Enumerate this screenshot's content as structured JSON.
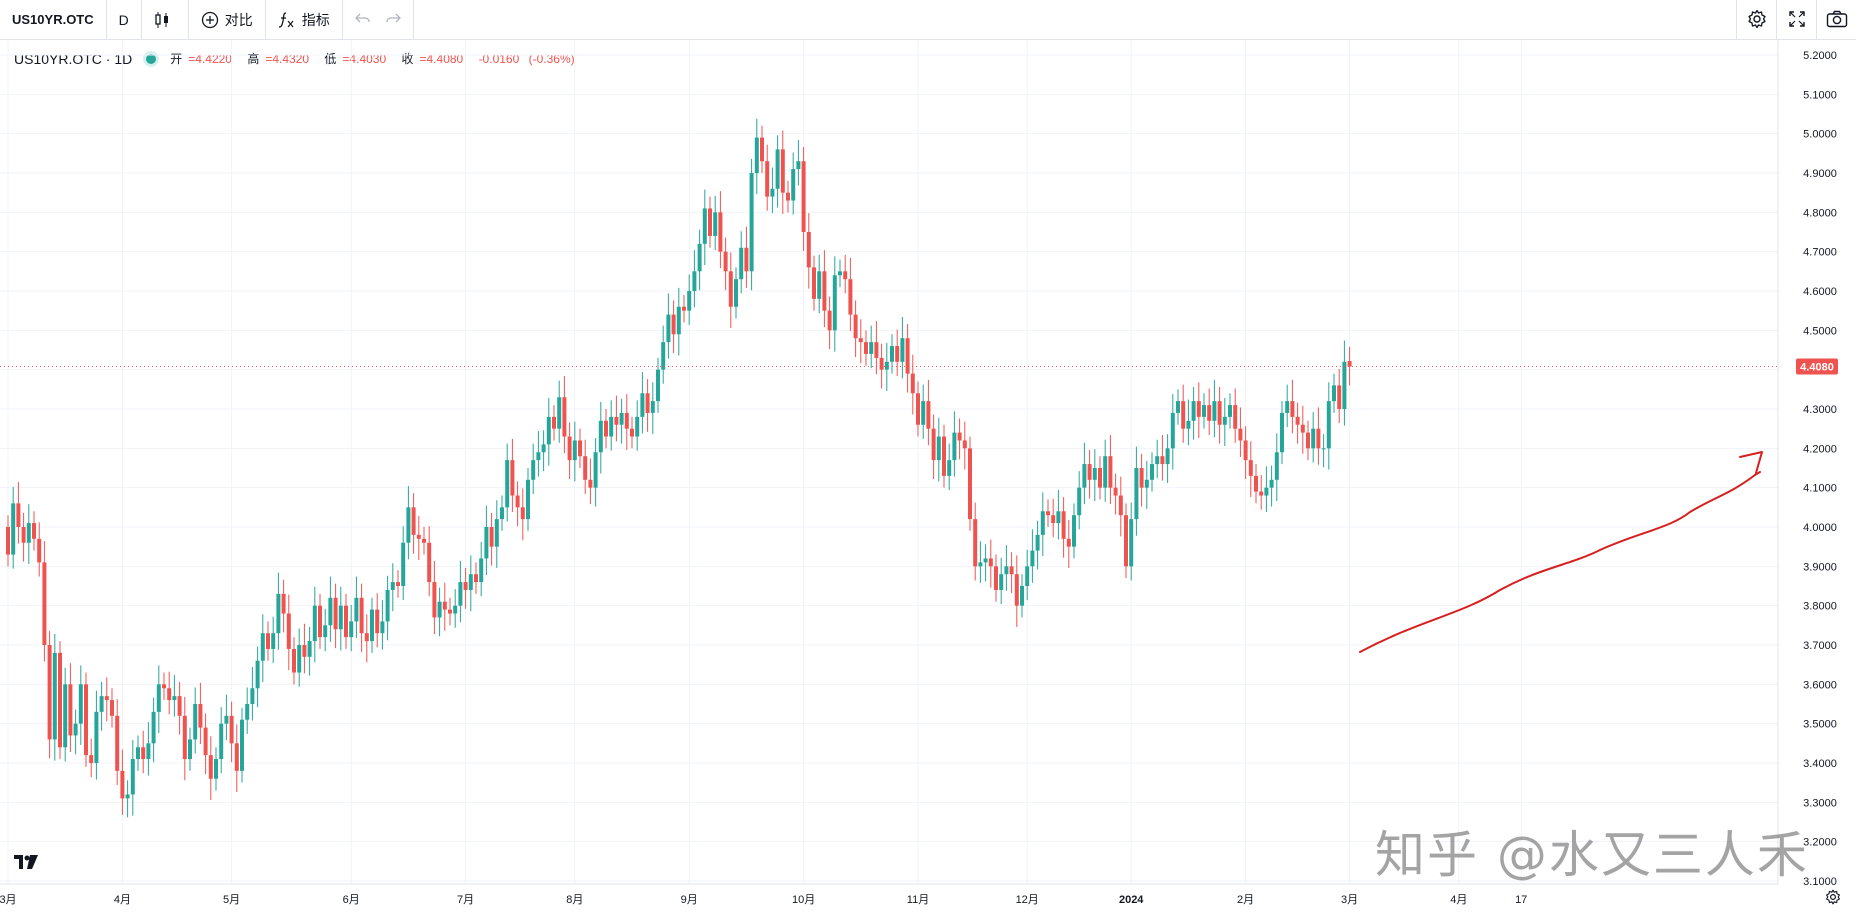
{
  "toolbar": {
    "symbol": "US10YR.OTC",
    "interval": "D",
    "compare_label": "对比",
    "indicators_label": "指标",
    "icons": [
      "candles-icon",
      "plus-circle-icon",
      "fx-icon",
      "undo-icon",
      "redo-icon",
      "gear-icon",
      "fullscreen-icon",
      "camera-icon"
    ]
  },
  "legend": {
    "symbol": "US10YR.OTC · 1D",
    "open_label": "开",
    "open": "=4.4220",
    "high_label": "高",
    "high": "=4.4320",
    "low_label": "低",
    "low": "=4.4030",
    "close_label": "收",
    "close": "=4.4080",
    "change": "-0.0160",
    "change_pct": "(-0.36%)"
  },
  "price_tag": "4.4080",
  "watermark": "知乎 @水又三人禾",
  "colors": {
    "up": "#26a69a",
    "down": "#ef5350",
    "annotation": "#d81e1e",
    "grid": "#f0f3fa"
  },
  "chart_data": {
    "type": "candlestick",
    "yaxis": {
      "min": 3.1,
      "max": 5.2,
      "ticks": [
        "5.2000",
        "5.1000",
        "5.0000",
        "4.9000",
        "4.8000",
        "4.7000",
        "4.6000",
        "4.5000",
        "4.4000",
        "4.3000",
        "4.2000",
        "4.1000",
        "4.0000",
        "3.9000",
        "3.8000",
        "3.7000",
        "3.6000",
        "3.5000",
        "3.4000",
        "3.3000",
        "3.2000",
        "3.1000"
      ]
    },
    "xaxis": {
      "labels": [
        "3月",
        "4月",
        "5月",
        "6月",
        "7月",
        "8月",
        "9月",
        "10月",
        "11月",
        "12月",
        "2024",
        "2月",
        "3月",
        "4月",
        "17"
      ],
      "label_positions": [
        0,
        22,
        43,
        66,
        88,
        109,
        131,
        153,
        175,
        196,
        216,
        238,
        258,
        279,
        291
      ]
    },
    "last_close": 4.408,
    "series": [
      {
        "o": 4.0,
        "c": 3.93
      },
      {
        "o": 3.93,
        "c": 4.06
      },
      {
        "o": 4.06,
        "c": 4.0
      },
      {
        "o": 4.0,
        "c": 3.96
      },
      {
        "o": 3.96,
        "c": 4.01
      },
      {
        "o": 4.01,
        "c": 3.97
      },
      {
        "o": 3.97,
        "c": 3.91
      },
      {
        "o": 3.91,
        "c": 3.7
      },
      {
        "o": 3.7,
        "c": 3.46
      },
      {
        "o": 3.46,
        "c": 3.68
      },
      {
        "o": 3.68,
        "c": 3.44
      },
      {
        "o": 3.44,
        "c": 3.6
      },
      {
        "o": 3.6,
        "c": 3.47
      },
      {
        "o": 3.47,
        "c": 3.5
      },
      {
        "o": 3.5,
        "c": 3.6
      },
      {
        "o": 3.6,
        "c": 3.42
      },
      {
        "o": 3.42,
        "c": 3.4
      },
      {
        "o": 3.4,
        "c": 3.53
      },
      {
        "o": 3.53,
        "c": 3.57
      },
      {
        "o": 3.57,
        "c": 3.56
      },
      {
        "o": 3.56,
        "c": 3.52
      },
      {
        "o": 3.52,
        "c": 3.38
      },
      {
        "o": 3.38,
        "c": 3.31
      },
      {
        "o": 3.31,
        "c": 3.32
      },
      {
        "o": 3.32,
        "c": 3.41
      },
      {
        "o": 3.41,
        "c": 3.44
      },
      {
        "o": 3.44,
        "c": 3.41
      },
      {
        "o": 3.41,
        "c": 3.45
      },
      {
        "o": 3.45,
        "c": 3.53
      },
      {
        "o": 3.53,
        "c": 3.6
      },
      {
        "o": 3.6,
        "c": 3.59
      },
      {
        "o": 3.59,
        "c": 3.56
      },
      {
        "o": 3.56,
        "c": 3.57
      },
      {
        "o": 3.57,
        "c": 3.52
      },
      {
        "o": 3.52,
        "c": 3.41
      },
      {
        "o": 3.41,
        "c": 3.46
      },
      {
        "o": 3.46,
        "c": 3.55
      },
      {
        "o": 3.55,
        "c": 3.49
      },
      {
        "o": 3.49,
        "c": 3.42
      },
      {
        "o": 3.42,
        "c": 3.36
      },
      {
        "o": 3.36,
        "c": 3.41
      },
      {
        "o": 3.41,
        "c": 3.5
      },
      {
        "o": 3.5,
        "c": 3.52
      },
      {
        "o": 3.52,
        "c": 3.45
      },
      {
        "o": 3.45,
        "c": 3.38
      },
      {
        "o": 3.38,
        "c": 3.51
      },
      {
        "o": 3.51,
        "c": 3.55
      },
      {
        "o": 3.55,
        "c": 3.59
      },
      {
        "o": 3.59,
        "c": 3.66
      },
      {
        "o": 3.66,
        "c": 3.73
      },
      {
        "o": 3.73,
        "c": 3.69
      },
      {
        "o": 3.69,
        "c": 3.73
      },
      {
        "o": 3.73,
        "c": 3.83
      },
      {
        "o": 3.83,
        "c": 3.78
      },
      {
        "o": 3.78,
        "c": 3.69
      },
      {
        "o": 3.69,
        "c": 3.63
      },
      {
        "o": 3.63,
        "c": 3.7
      },
      {
        "o": 3.7,
        "c": 3.67
      },
      {
        "o": 3.67,
        "c": 3.71
      },
      {
        "o": 3.71,
        "c": 3.8
      },
      {
        "o": 3.8,
        "c": 3.72
      },
      {
        "o": 3.72,
        "c": 3.75
      },
      {
        "o": 3.75,
        "c": 3.82
      },
      {
        "o": 3.82,
        "c": 3.74
      },
      {
        "o": 3.74,
        "c": 3.8
      },
      {
        "o": 3.8,
        "c": 3.72
      },
      {
        "o": 3.72,
        "c": 3.76
      },
      {
        "o": 3.76,
        "c": 3.82
      },
      {
        "o": 3.82,
        "c": 3.73
      },
      {
        "o": 3.73,
        "c": 3.71
      },
      {
        "o": 3.71,
        "c": 3.79
      },
      {
        "o": 3.79,
        "c": 3.73
      },
      {
        "o": 3.73,
        "c": 3.76
      },
      {
        "o": 3.76,
        "c": 3.84
      },
      {
        "o": 3.84,
        "c": 3.86
      },
      {
        "o": 3.86,
        "c": 3.85
      },
      {
        "o": 3.85,
        "c": 3.96
      },
      {
        "o": 3.96,
        "c": 4.05
      },
      {
        "o": 4.05,
        "c": 3.98
      },
      {
        "o": 3.98,
        "c": 3.97
      },
      {
        "o": 3.97,
        "c": 3.96
      },
      {
        "o": 3.96,
        "c": 3.86
      },
      {
        "o": 3.86,
        "c": 3.77
      },
      {
        "o": 3.77,
        "c": 3.81
      },
      {
        "o": 3.81,
        "c": 3.79
      },
      {
        "o": 3.79,
        "c": 3.78
      },
      {
        "o": 3.78,
        "c": 3.8
      },
      {
        "o": 3.8,
        "c": 3.86
      },
      {
        "o": 3.86,
        "c": 3.84
      },
      {
        "o": 3.84,
        "c": 3.88
      },
      {
        "o": 3.88,
        "c": 3.86
      },
      {
        "o": 3.86,
        "c": 3.92
      },
      {
        "o": 3.92,
        "c": 4.0
      },
      {
        "o": 4.0,
        "c": 3.95
      },
      {
        "o": 3.95,
        "c": 4.02
      },
      {
        "o": 4.02,
        "c": 4.05
      },
      {
        "o": 4.05,
        "c": 4.17
      },
      {
        "o": 4.17,
        "c": 4.08
      },
      {
        "o": 4.08,
        "c": 4.05
      },
      {
        "o": 4.05,
        "c": 4.02
      },
      {
        "o": 4.02,
        "c": 4.12
      },
      {
        "o": 4.12,
        "c": 4.17
      },
      {
        "o": 4.17,
        "c": 4.19
      },
      {
        "o": 4.19,
        "c": 4.21
      },
      {
        "o": 4.21,
        "c": 4.28
      },
      {
        "o": 4.28,
        "c": 4.25
      },
      {
        "o": 4.25,
        "c": 4.33
      },
      {
        "o": 4.33,
        "c": 4.23
      },
      {
        "o": 4.23,
        "c": 4.17
      },
      {
        "o": 4.17,
        "c": 4.22
      },
      {
        "o": 4.22,
        "c": 4.18
      },
      {
        "o": 4.18,
        "c": 4.12
      },
      {
        "o": 4.12,
        "c": 4.1
      },
      {
        "o": 4.1,
        "c": 4.19
      },
      {
        "o": 4.19,
        "c": 4.27
      },
      {
        "o": 4.27,
        "c": 4.23
      },
      {
        "o": 4.23,
        "c": 4.28
      },
      {
        "o": 4.28,
        "c": 4.26
      },
      {
        "o": 4.26,
        "c": 4.29
      },
      {
        "o": 4.29,
        "c": 4.25
      },
      {
        "o": 4.25,
        "c": 4.23
      },
      {
        "o": 4.23,
        "c": 4.28
      },
      {
        "o": 4.28,
        "c": 4.34
      },
      {
        "o": 4.34,
        "c": 4.29
      },
      {
        "o": 4.29,
        "c": 4.32
      },
      {
        "o": 4.32,
        "c": 4.4
      },
      {
        "o": 4.4,
        "c": 4.47
      },
      {
        "o": 4.47,
        "c": 4.54
      },
      {
        "o": 4.54,
        "c": 4.49
      },
      {
        "o": 4.49,
        "c": 4.56
      },
      {
        "o": 4.56,
        "c": 4.55
      },
      {
        "o": 4.55,
        "c": 4.6
      },
      {
        "o": 4.6,
        "c": 4.65
      },
      {
        "o": 4.65,
        "c": 4.72
      },
      {
        "o": 4.72,
        "c": 4.81
      },
      {
        "o": 4.81,
        "c": 4.74
      },
      {
        "o": 4.74,
        "c": 4.8
      },
      {
        "o": 4.8,
        "c": 4.7
      },
      {
        "o": 4.7,
        "c": 4.65
      },
      {
        "o": 4.65,
        "c": 4.56
      },
      {
        "o": 4.56,
        "c": 4.63
      },
      {
        "o": 4.63,
        "c": 4.71
      },
      {
        "o": 4.71,
        "c": 4.65
      },
      {
        "o": 4.65,
        "c": 4.9
      },
      {
        "o": 4.9,
        "c": 4.99
      },
      {
        "o": 4.99,
        "c": 4.93
      },
      {
        "o": 4.93,
        "c": 4.84
      },
      {
        "o": 4.84,
        "c": 4.86
      },
      {
        "o": 4.86,
        "c": 4.96
      },
      {
        "o": 4.96,
        "c": 4.85
      },
      {
        "o": 4.85,
        "c": 4.83
      },
      {
        "o": 4.83,
        "c": 4.91
      },
      {
        "o": 4.91,
        "c": 4.93
      },
      {
        "o": 4.93,
        "c": 4.75
      },
      {
        "o": 4.75,
        "c": 4.66
      },
      {
        "o": 4.66,
        "c": 4.58
      },
      {
        "o": 4.58,
        "c": 4.65
      },
      {
        "o": 4.65,
        "c": 4.55
      },
      {
        "o": 4.55,
        "c": 4.5
      },
      {
        "o": 4.5,
        "c": 4.64
      },
      {
        "o": 4.64,
        "c": 4.65
      },
      {
        "o": 4.65,
        "c": 4.63
      },
      {
        "o": 4.63,
        "c": 4.54
      },
      {
        "o": 4.54,
        "c": 4.48
      },
      {
        "o": 4.48,
        "c": 4.47
      },
      {
        "o": 4.47,
        "c": 4.44
      },
      {
        "o": 4.44,
        "c": 4.47
      },
      {
        "o": 4.47,
        "c": 4.43
      },
      {
        "o": 4.43,
        "c": 4.4
      },
      {
        "o": 4.4,
        "c": 4.42
      },
      {
        "o": 4.42,
        "c": 4.46
      },
      {
        "o": 4.46,
        "c": 4.42
      },
      {
        "o": 4.42,
        "c": 4.48
      },
      {
        "o": 4.48,
        "c": 4.39
      },
      {
        "o": 4.39,
        "c": 4.34
      },
      {
        "o": 4.34,
        "c": 4.26
      },
      {
        "o": 4.26,
        "c": 4.32
      },
      {
        "o": 4.32,
        "c": 4.25
      },
      {
        "o": 4.25,
        "c": 4.17
      },
      {
        "o": 4.17,
        "c": 4.23
      },
      {
        "o": 4.23,
        "c": 4.13
      },
      {
        "o": 4.13,
        "c": 4.17
      },
      {
        "o": 4.17,
        "c": 4.24
      },
      {
        "o": 4.24,
        "c": 4.22
      },
      {
        "o": 4.22,
        "c": 4.2
      },
      {
        "o": 4.2,
        "c": 4.02
      },
      {
        "o": 4.02,
        "c": 3.9
      },
      {
        "o": 3.9,
        "c": 3.91
      },
      {
        "o": 3.91,
        "c": 3.92
      },
      {
        "o": 3.92,
        "c": 3.9
      },
      {
        "o": 3.9,
        "c": 3.84
      },
      {
        "o": 3.84,
        "c": 3.88
      },
      {
        "o": 3.88,
        "c": 3.9
      },
      {
        "o": 3.9,
        "c": 3.88
      },
      {
        "o": 3.88,
        "c": 3.8
      },
      {
        "o": 3.8,
        "c": 3.85
      },
      {
        "o": 3.85,
        "c": 3.9
      },
      {
        "o": 3.9,
        "c": 3.94
      },
      {
        "o": 3.94,
        "c": 3.98
      },
      {
        "o": 3.98,
        "c": 4.04
      },
      {
        "o": 4.04,
        "c": 4.03
      },
      {
        "o": 4.03,
        "c": 4.01
      },
      {
        "o": 4.01,
        "c": 4.04
      },
      {
        "o": 4.04,
        "c": 3.97
      },
      {
        "o": 3.97,
        "c": 3.95
      },
      {
        "o": 3.95,
        "c": 4.03
      },
      {
        "o": 4.03,
        "c": 4.1
      },
      {
        "o": 4.1,
        "c": 4.16
      },
      {
        "o": 4.16,
        "c": 4.12
      },
      {
        "o": 4.12,
        "c": 4.15
      },
      {
        "o": 4.15,
        "c": 4.1
      },
      {
        "o": 4.1,
        "c": 4.18
      },
      {
        "o": 4.18,
        "c": 4.1
      },
      {
        "o": 4.1,
        "c": 4.08
      },
      {
        "o": 4.08,
        "c": 4.03
      },
      {
        "o": 4.03,
        "c": 3.9
      },
      {
        "o": 3.9,
        "c": 4.02
      },
      {
        "o": 4.02,
        "c": 4.15
      },
      {
        "o": 4.15,
        "c": 4.1
      },
      {
        "o": 4.1,
        "c": 4.12
      },
      {
        "o": 4.12,
        "c": 4.16
      },
      {
        "o": 4.16,
        "c": 4.18
      },
      {
        "o": 4.18,
        "c": 4.16
      },
      {
        "o": 4.16,
        "c": 4.2
      },
      {
        "o": 4.2,
        "c": 4.29
      },
      {
        "o": 4.29,
        "c": 4.32
      },
      {
        "o": 4.32,
        "c": 4.25
      },
      {
        "o": 4.25,
        "c": 4.27
      },
      {
        "o": 4.27,
        "c": 4.32
      },
      {
        "o": 4.32,
        "c": 4.28
      },
      {
        "o": 4.28,
        "c": 4.31
      },
      {
        "o": 4.31,
        "c": 4.27
      },
      {
        "o": 4.27,
        "c": 4.32
      },
      {
        "o": 4.32,
        "c": 4.26
      },
      {
        "o": 4.26,
        "c": 4.28
      },
      {
        "o": 4.28,
        "c": 4.31
      },
      {
        "o": 4.31,
        "c": 4.25
      },
      {
        "o": 4.25,
        "c": 4.22
      },
      {
        "o": 4.22,
        "c": 4.17
      },
      {
        "o": 4.17,
        "c": 4.13
      },
      {
        "o": 4.13,
        "c": 4.09
      },
      {
        "o": 4.09,
        "c": 4.08
      },
      {
        "o": 4.08,
        "c": 4.1
      },
      {
        "o": 4.1,
        "c": 4.12
      },
      {
        "o": 4.12,
        "c": 4.19
      },
      {
        "o": 4.19,
        "c": 4.29
      },
      {
        "o": 4.29,
        "c": 4.32
      },
      {
        "o": 4.32,
        "c": 4.28
      },
      {
        "o": 4.28,
        "c": 4.26
      },
      {
        "o": 4.26,
        "c": 4.24
      },
      {
        "o": 4.24,
        "c": 4.2
      },
      {
        "o": 4.2,
        "c": 4.25
      },
      {
        "o": 4.25,
        "c": 4.2
      },
      {
        "o": 4.2,
        "c": 4.2
      },
      {
        "o": 4.2,
        "c": 4.32
      },
      {
        "o": 4.32,
        "c": 4.36
      },
      {
        "o": 4.36,
        "c": 4.3
      },
      {
        "o": 4.3,
        "c": 4.42
      },
      {
        "o": 4.422,
        "c": 4.408
      }
    ]
  },
  "annotation": {
    "type": "arrow",
    "color": "#d81e1e"
  }
}
